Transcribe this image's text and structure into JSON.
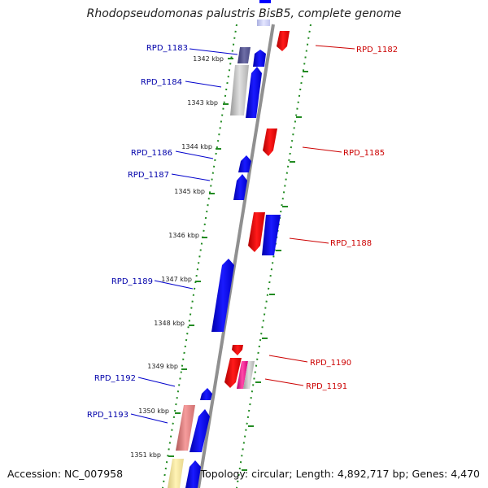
{
  "title": "Rhodopseudomonas palustris BisB5, complete genome",
  "accession": "Accession: NC_007958",
  "topology": "Topology: circular; Length: 4,892,717 bp; Genes: 4,470",
  "colors": {
    "forward": "#0000ff",
    "reverse": "#ff0000",
    "left_label": "#0000aa",
    "right_label": "#cc0000",
    "backbone": "#909090",
    "guide": "#228b22"
  },
  "kbp_ticks": [
    "1342 kbp",
    "1343 kbp",
    "1344 kbp",
    "1345 kbp",
    "1346 kbp",
    "1347 kbp",
    "1348 kbp",
    "1349 kbp",
    "1350 kbp",
    "1351 kbp"
  ],
  "left_genes": [
    "RPD_1183",
    "RPD_1184",
    "RPD_1186",
    "RPD_1187",
    "RPD_1189",
    "RPD_1192",
    "RPD_1193"
  ],
  "right_genes": [
    "RPD_1182",
    "RPD_1185",
    "RPD_1188",
    "RPD_1190",
    "RPD_1191"
  ]
}
